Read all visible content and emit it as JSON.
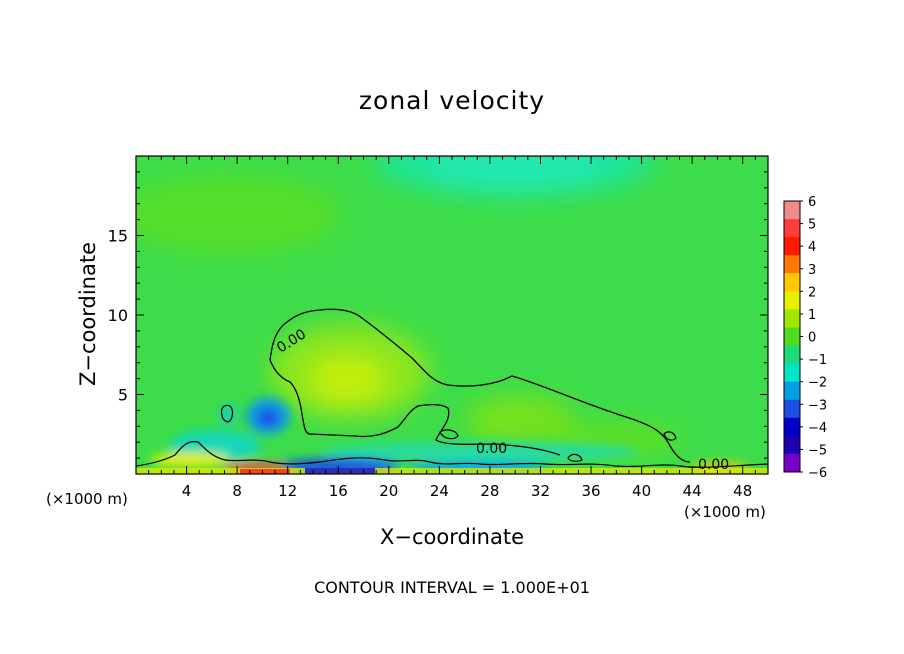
{
  "chart_data": {
    "type": "heatmap",
    "title": "zonal velocity",
    "xlabel": "X−coordinate",
    "ylabel": "Z−coordinate",
    "x_unit": "(×1000 m)",
    "xlim": [
      0,
      50
    ],
    "ylim": [
      0,
      20
    ],
    "x_ticks": [
      4,
      8,
      12,
      16,
      20,
      24,
      28,
      32,
      36,
      40,
      44,
      48
    ],
    "y_ticks": [
      5,
      10,
      15
    ],
    "contour_labels": [
      "0.00",
      "0.00",
      "0.00"
    ],
    "note": "CONTOUR INTERVAL = 1.000E+01",
    "colorbar": {
      "levels": [
        6,
        5,
        4,
        3,
        2,
        1,
        0,
        -1,
        -2,
        -3,
        -4,
        -5,
        -6
      ],
      "level_labels": [
        "6",
        "5",
        "4",
        "3",
        "2",
        "1",
        "0",
        "−1",
        "−2",
        "−3",
        "−4",
        "−5",
        "−6"
      ],
      "colors": [
        "#f08c8c",
        "#ff3c3c",
        "#ff1800",
        "#ff7800",
        "#ffc800",
        "#e6f000",
        "#a0e600",
        "#50dc1e",
        "#1edc78",
        "#00e6c8",
        "#00a0e6",
        "#1e50e6",
        "#0000c8",
        "#1e00b4",
        "#7800c8"
      ]
    }
  }
}
